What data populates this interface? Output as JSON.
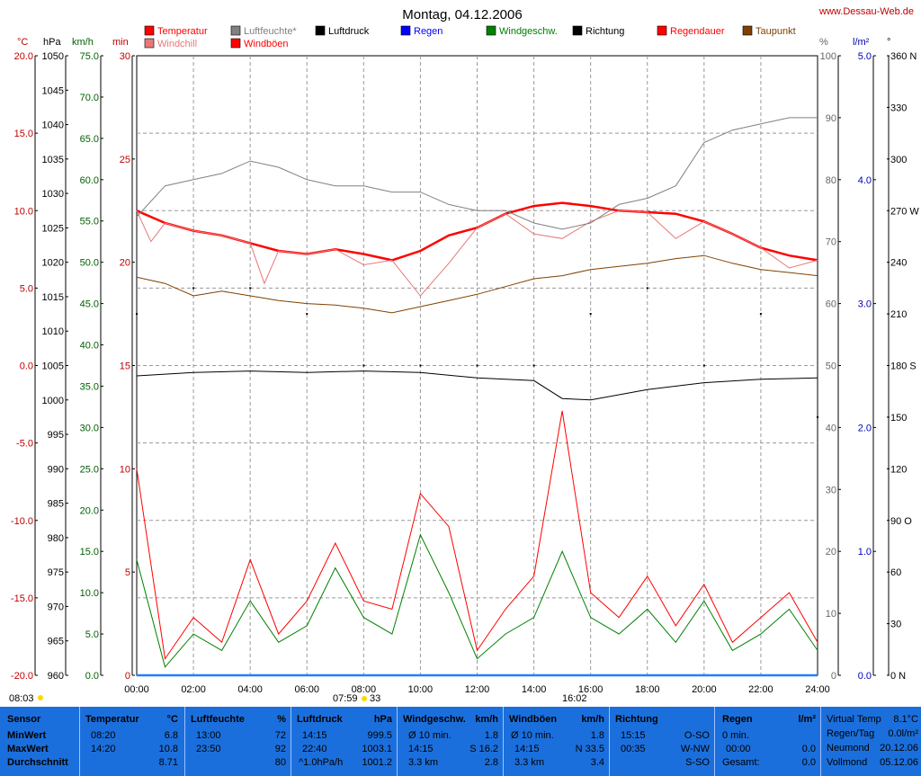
{
  "title": "Montag, 04.12.2006",
  "site": "www.Dessau-Web.de",
  "colors": {
    "temperature": "#ff0000",
    "windchill": "#e87878",
    "humidity": "#808080",
    "windboeen": "#ff0000",
    "luftdruck": "#000000",
    "regen": "#0000ff",
    "windgeschw": "#008000",
    "richtung": "#000000",
    "regendauer": "#ff0000",
    "taupunkt": "#804000",
    "panel_bg": "#1b6fdc"
  },
  "legend": [
    {
      "label": "Temperatur",
      "color": "#ff0000",
      "icon": "red-square"
    },
    {
      "label": "Windchill",
      "color": "#e87878",
      "icon": "pink-square"
    },
    {
      "label": "Luftfeuchte*",
      "color": "#808080",
      "icon": "gray-square"
    },
    {
      "label": "Windböen",
      "color": "#ff0000",
      "icon": "red-square"
    },
    {
      "label": "Luftdruck",
      "color": "#000000",
      "icon": "black-square"
    },
    {
      "label": "Regen",
      "color": "#0000ff",
      "icon": "blue-square"
    },
    {
      "label": "Windgeschw.",
      "color": "#008000",
      "icon": "green-square"
    },
    {
      "label": "Richtung",
      "color": "#000000",
      "icon": "black-square"
    },
    {
      "label": "Regendauer",
      "color": "#ff0000",
      "icon": "red-square"
    },
    {
      "label": "Taupunkt",
      "color": "#804000",
      "icon": "brown-square"
    }
  ],
  "axes": {
    "temp": {
      "unit": "°C",
      "ticks": [
        "20.0",
        "15.0",
        "10.0",
        "5.0",
        "0.0",
        "-5.0",
        "-10.0",
        "-15.0",
        "-20.0"
      ]
    },
    "hpa": {
      "unit": "hPa",
      "ticks": [
        "1050",
        "1045",
        "1040",
        "1035",
        "1030",
        "1025",
        "1020",
        "1015",
        "1010",
        "1005",
        "1000",
        "995",
        "990",
        "985",
        "980",
        "975",
        "970",
        "965",
        "960"
      ]
    },
    "kmh": {
      "unit": "km/h",
      "ticks": [
        "75.0",
        "70.0",
        "65.0",
        "60.0",
        "55.0",
        "50.0",
        "45.0",
        "40.0",
        "35.0",
        "30.0",
        "25.0",
        "20.0",
        "15.0",
        "10.0",
        "5.0",
        "0.0"
      ]
    },
    "min": {
      "unit": "min",
      "ticks": [
        "30",
        "25",
        "20",
        "15",
        "10",
        "5",
        "0"
      ]
    },
    "pct": {
      "unit": "%",
      "ticks": [
        "100",
        "90",
        "80",
        "70",
        "60",
        "50",
        "40",
        "30",
        "20",
        "10",
        "0"
      ]
    },
    "rain": {
      "unit": "l/m²",
      "ticks": [
        "5.0",
        "4.0",
        "3.0",
        "2.0",
        "1.0",
        "0.0"
      ]
    },
    "deg": {
      "unit": "°",
      "ticks": [
        "360 N",
        "330",
        "300",
        "270 W",
        "240",
        "210",
        "180 S",
        "150",
        "120",
        "90 O",
        "60",
        "30",
        "0 N"
      ]
    }
  },
  "sun": {
    "rise_label": "08:03",
    "sunrise": "07:59",
    "sun_minutes": "33",
    "sunset": "16:02"
  },
  "chart_data": {
    "type": "line",
    "x_unit": "hours",
    "xlim": [
      0,
      24
    ],
    "x_ticks": [
      "00:00",
      "02:00",
      "04:00",
      "06:00",
      "08:00",
      "10:00",
      "12:00",
      "14:00",
      "16:00",
      "18:00",
      "20:00",
      "22:00",
      "24:00"
    ],
    "series": [
      {
        "name": "Temperatur",
        "axis": "temp",
        "x": [
          0,
          1,
          2,
          3,
          4,
          5,
          6,
          7,
          8,
          9,
          10,
          11,
          12,
          13,
          14,
          15,
          16,
          17,
          18,
          19,
          20,
          21,
          22,
          23,
          24
        ],
        "values": [
          10.0,
          9.2,
          8.7,
          8.4,
          7.9,
          7.4,
          7.2,
          7.5,
          7.2,
          6.8,
          7.4,
          8.4,
          8.9,
          9.8,
          10.3,
          10.5,
          10.3,
          10.0,
          9.9,
          9.8,
          9.3,
          8.5,
          7.6,
          7.1,
          6.8
        ]
      },
      {
        "name": "Windchill",
        "axis": "temp",
        "x": [
          0,
          0.5,
          1,
          2,
          3,
          4,
          4.5,
          5,
          6,
          7,
          8,
          9,
          10,
          11,
          12,
          13,
          14,
          15,
          16,
          17,
          18,
          19,
          20,
          21,
          22,
          23,
          24
        ],
        "values": [
          10.0,
          8.0,
          9.2,
          8.7,
          8.4,
          7.9,
          5.3,
          7.4,
          7.2,
          7.5,
          6.5,
          6.8,
          4.5,
          6.6,
          8.9,
          9.8,
          8.5,
          8.2,
          9.3,
          10.0,
          9.9,
          8.2,
          9.3,
          8.5,
          7.6,
          6.3,
          6.8
        ]
      },
      {
        "name": "Luftfeuchte*",
        "axis": "pct",
        "x": [
          0,
          1,
          2,
          3,
          4,
          5,
          6,
          7,
          8,
          9,
          10,
          11,
          12,
          13,
          14,
          15,
          16,
          17,
          18,
          19,
          20,
          21,
          22,
          23,
          24
        ],
        "values": [
          74,
          79,
          80,
          81,
          83,
          82,
          80,
          79,
          79,
          78,
          78,
          76,
          75,
          75,
          73,
          72,
          73,
          76,
          77,
          79,
          86,
          88,
          89,
          90,
          90
        ]
      },
      {
        "name": "Taupunkt",
        "axis": "temp",
        "x": [
          0,
          1,
          2,
          3,
          4,
          5,
          6,
          7,
          8,
          9,
          10,
          11,
          12,
          13,
          14,
          15,
          16,
          17,
          18,
          19,
          20,
          21,
          22,
          23,
          24
        ],
        "values": [
          5.7,
          5.3,
          4.5,
          4.8,
          4.5,
          4.2,
          4.0,
          3.9,
          3.7,
          3.4,
          3.8,
          4.2,
          4.6,
          5.1,
          5.6,
          5.8,
          6.2,
          6.4,
          6.6,
          6.9,
          7.1,
          6.6,
          6.2,
          6.0,
          5.8
        ]
      },
      {
        "name": "Luftdruck",
        "axis": "hpa",
        "x": [
          0,
          2,
          4,
          6,
          8,
          10,
          12,
          14,
          15,
          16,
          18,
          20,
          22,
          24
        ],
        "values": [
          1003.5,
          1004.0,
          1004.2,
          1004.0,
          1004.2,
          1004.0,
          1003.2,
          1002.8,
          1000.2,
          1000.0,
          1001.5,
          1002.5,
          1003.0,
          1003.2
        ]
      },
      {
        "name": "Regen",
        "axis": "rain",
        "x": [
          0,
          24
        ],
        "values": [
          0.0,
          0.0
        ]
      },
      {
        "name": "Windgeschw.",
        "axis": "kmh",
        "x": [
          0,
          1,
          2,
          3,
          4,
          5,
          6,
          7,
          8,
          9,
          10,
          11,
          12,
          13,
          14,
          15,
          16,
          17,
          18,
          19,
          20,
          21,
          22,
          23,
          24
        ],
        "values": [
          14.0,
          1.0,
          5.0,
          3.0,
          9.0,
          4.0,
          6.0,
          13.0,
          7.0,
          5.0,
          17.0,
          10.0,
          2.0,
          5.0,
          7.0,
          15.0,
          7.0,
          5.0,
          8.0,
          4.0,
          9.0,
          3.0,
          5.0,
          8.0,
          3.0
        ]
      },
      {
        "name": "Windböen",
        "axis": "kmh",
        "x": [
          0,
          1,
          2,
          3,
          4,
          5,
          6,
          7,
          8,
          9,
          10,
          11,
          12,
          13,
          14,
          15,
          16,
          17,
          18,
          19,
          20,
          21,
          22,
          23,
          24
        ],
        "values": [
          25.0,
          2.0,
          7.0,
          4.0,
          14.0,
          5.0,
          9.0,
          16.0,
          9.0,
          8.0,
          22.0,
          18.0,
          3.0,
          8.0,
          12.0,
          32.0,
          10.0,
          7.0,
          12.0,
          6.0,
          11.0,
          4.0,
          7.0,
          10.0,
          4.0
        ]
      },
      {
        "name": "Richtung",
        "axis": "deg",
        "x": [
          0,
          2,
          4,
          6,
          8,
          10,
          12,
          14,
          16,
          18,
          20,
          22,
          24
        ],
        "values": [
          210,
          225,
          225,
          210,
          180,
          180,
          180,
          180,
          210,
          225,
          180,
          210,
          150
        ]
      }
    ]
  },
  "stats": {
    "sensor": {
      "header": "Sensor",
      "rows": [
        "MinWert",
        "MaxWert",
        "Durchschnitt"
      ]
    },
    "temperatur": {
      "header": "Temperatur",
      "unit": "°C",
      "rows": [
        [
          "08:20",
          "6.8"
        ],
        [
          "14:20",
          "10.8"
        ],
        [
          "",
          "8.71"
        ]
      ]
    },
    "luftfeuchte": {
      "header": "Luftfeuchte",
      "unit": "%",
      "rows": [
        [
          "13:00",
          "72"
        ],
        [
          "23:50",
          "92"
        ],
        [
          "",
          "80"
        ]
      ]
    },
    "luftdruck": {
      "header": "Luftdruck",
      "unit": "hPa",
      "rows": [
        [
          "14:15",
          "999.5"
        ],
        [
          "22:40",
          "1003.1"
        ],
        [
          "^1.0hPa/h",
          "1001.2"
        ]
      ]
    },
    "windgeschw": {
      "header": "Windgeschw.",
      "unit": "km/h",
      "rows": [
        [
          "Ø 10 min.",
          "1.8"
        ],
        [
          "14:15",
          "S 16.2"
        ],
        [
          "3.3 km",
          "2.8"
        ]
      ]
    },
    "windboeen": {
      "header": "Windböen",
      "unit": "km/h",
      "rows": [
        [
          "Ø 10 min.",
          "1.8"
        ],
        [
          "14:15",
          "N 33.5"
        ],
        [
          "3.3 km",
          "3.4"
        ]
      ]
    },
    "richtung": {
      "header": "Richtung",
      "unit": "",
      "rows": [
        [
          "15:15",
          "O-SO"
        ],
        [
          "00:35",
          "W-NW"
        ],
        [
          "",
          "S-SO"
        ]
      ]
    },
    "regen": {
      "header": "Regen",
      "unit": "l/m²",
      "rows": [
        [
          "0 min.",
          ""
        ],
        [
          "00:00",
          "0.0"
        ],
        [
          "Gesamt:",
          "0.0"
        ]
      ]
    },
    "extra": {
      "rows": [
        [
          "Virtual Temp",
          "8.1°C"
        ],
        [
          "Regen/Tag",
          "0.0l/m²"
        ],
        [
          "Neumond",
          "20.12.06"
        ],
        [
          "Vollmond",
          "05.12.06"
        ]
      ]
    }
  }
}
